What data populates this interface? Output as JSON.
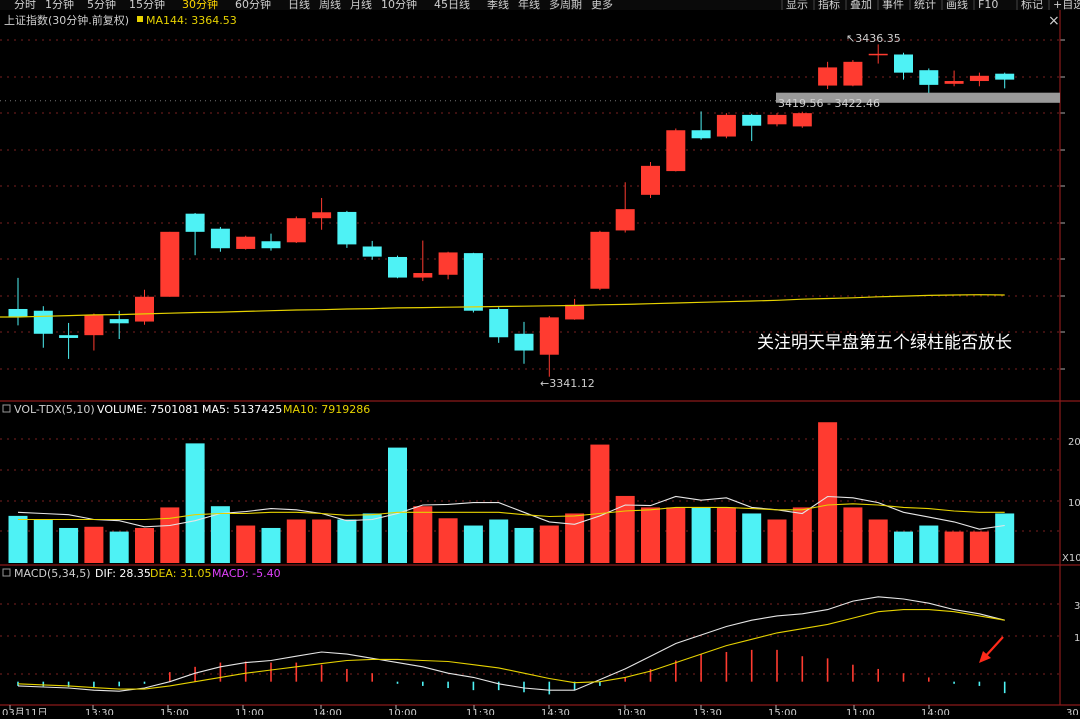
{
  "topbar": {
    "periods": [
      "分时",
      "1分钟",
      "5分钟",
      "15分钟",
      "30分钟",
      "60分钟",
      "日线",
      "周线",
      "月线",
      "10分钟",
      "45日线",
      "季线",
      "年线",
      "多周期",
      "更多"
    ],
    "active_period": "30分钟",
    "tools": [
      "显示",
      "指标",
      "叠加",
      "事件",
      "统计",
      "画线",
      "F10",
      "标记",
      "+自选"
    ],
    "close_glyph": "×"
  },
  "colors": {
    "up": "#ff3b30",
    "down": "#4ef2f5",
    "ma": "#e6d200",
    "white_line": "#e6e6e6",
    "dea": "#e6d200",
    "macd_label": "#e040fb",
    "grid": "#7a1f1f",
    "divider": "#8b1a1a"
  },
  "main_panel": {
    "title": "上证指数(30分钟.前复权)",
    "ma_label": "MA144: 3364.53",
    "high_label": "3436.35",
    "low_label": "3341.12",
    "range_label": "3419.56 - 3422.46",
    "annotation": "关注明天早盘第五个绿柱能否放长"
  },
  "volume_panel": {
    "name": "VOL-TDX(5,10)",
    "volume": "VOLUME: 7501081",
    "ma5": "MA5: 5137425",
    "ma10": "MA10: 7919286",
    "y_labels": [
      "20",
      "10",
      "X10"
    ]
  },
  "macd_panel": {
    "name": "MACD(5,34,5)",
    "dif": "DIF: 28.35",
    "dea": "DEA: 31.05",
    "macd": "MACD: -5.40",
    "y_labels": [
      "3",
      "1"
    ]
  },
  "x_axis": {
    "labels": [
      "03月11日",
      "13:30",
      "15:00",
      "11:00",
      "14:00",
      "10:00",
      "11:30",
      "14:30",
      "10:30",
      "13:30",
      "15:00",
      "11:00",
      "14:00"
    ],
    "corner": "30"
  },
  "chart_data": {
    "type": "candlestick",
    "title": "上证指数(30分钟.前复权)",
    "price_range": [
      3335,
      3445
    ],
    "candles": [
      {
        "o": 3360.5,
        "c": 3358.2,
        "h": 3369.4,
        "l": 3355.8
      },
      {
        "o": 3360.0,
        "c": 3353.4,
        "h": 3361.3,
        "l": 3349.4
      },
      {
        "o": 3353.0,
        "c": 3352.2,
        "h": 3356.5,
        "l": 3346.2
      },
      {
        "o": 3353.0,
        "c": 3358.7,
        "h": 3359.2,
        "l": 3348.6
      },
      {
        "o": 3357.6,
        "c": 3356.4,
        "h": 3360.0,
        "l": 3351.9
      },
      {
        "o": 3356.9,
        "c": 3364.0,
        "h": 3366.0,
        "l": 3356.0
      },
      {
        "o": 3364.0,
        "c": 3382.6,
        "h": 3382.6,
        "l": 3364.0
      },
      {
        "o": 3387.8,
        "c": 3382.6,
        "h": 3388.0,
        "l": 3375.9
      },
      {
        "o": 3383.5,
        "c": 3377.9,
        "h": 3384.0,
        "l": 3376.9
      },
      {
        "o": 3377.7,
        "c": 3381.2,
        "h": 3381.5,
        "l": 3377.5
      },
      {
        "o": 3379.9,
        "c": 3377.9,
        "h": 3382.1,
        "l": 3377.2
      },
      {
        "o": 3379.6,
        "c": 3386.5,
        "h": 3387.0,
        "l": 3379.4
      },
      {
        "o": 3386.5,
        "c": 3388.2,
        "h": 3392.3,
        "l": 3383.2
      },
      {
        "o": 3388.3,
        "c": 3379.0,
        "h": 3388.6,
        "l": 3378.0
      },
      {
        "o": 3378.4,
        "c": 3375.5,
        "h": 3380.0,
        "l": 3374.6
      },
      {
        "o": 3375.4,
        "c": 3369.5,
        "h": 3375.8,
        "l": 3369.3
      },
      {
        "o": 3369.5,
        "c": 3370.8,
        "h": 3380.1,
        "l": 3368.5
      },
      {
        "o": 3370.3,
        "c": 3376.7,
        "h": 3376.9,
        "l": 3369.0
      },
      {
        "o": 3376.5,
        "c": 3360.0,
        "h": 3376.6,
        "l": 3359.5
      },
      {
        "o": 3360.5,
        "c": 3352.4,
        "h": 3361.0,
        "l": 3350.8
      },
      {
        "o": 3353.4,
        "c": 3348.6,
        "h": 3356.8,
        "l": 3344.8
      },
      {
        "o": 3347.4,
        "c": 3358.1,
        "h": 3358.5,
        "l": 3341.1
      },
      {
        "o": 3357.5,
        "c": 3361.7,
        "h": 3363.4,
        "l": 3357.4
      },
      {
        "o": 3366.3,
        "c": 3382.6,
        "h": 3382.9,
        "l": 3365.9
      },
      {
        "o": 3383.0,
        "c": 3389.1,
        "h": 3396.8,
        "l": 3382.4
      },
      {
        "o": 3393.2,
        "c": 3401.5,
        "h": 3402.6,
        "l": 3392.3
      },
      {
        "o": 3400.0,
        "c": 3411.7,
        "h": 3412.2,
        "l": 3399.9
      },
      {
        "o": 3411.7,
        "c": 3409.4,
        "h": 3417.1,
        "l": 3409.0
      },
      {
        "o": 3409.9,
        "c": 3416.1,
        "h": 3416.6,
        "l": 3409.4
      },
      {
        "o": 3416.1,
        "c": 3413.0,
        "h": 3416.4,
        "l": 3408.6
      },
      {
        "o": 3413.4,
        "c": 3416.1,
        "h": 3416.6,
        "l": 3412.8
      },
      {
        "o": 3412.8,
        "c": 3416.6,
        "h": 3417.0,
        "l": 3412.4
      },
      {
        "o": 3424.5,
        "c": 3429.7,
        "h": 3431.3,
        "l": 3423.5
      },
      {
        "o": 3424.5,
        "c": 3431.3,
        "h": 3431.8,
        "l": 3424.3
      },
      {
        "o": 3433.3,
        "c": 3433.6,
        "h": 3436.3,
        "l": 3430.8
      },
      {
        "o": 3433.4,
        "c": 3428.2,
        "h": 3433.9,
        "l": 3426.2
      },
      {
        "o": 3428.9,
        "c": 3424.7,
        "h": 3429.4,
        "l": 3422.4
      },
      {
        "o": 3425.0,
        "c": 3425.8,
        "h": 3428.8,
        "l": 3424.3
      },
      {
        "o": 3425.8,
        "c": 3427.3,
        "h": 3428.2,
        "l": 3424.3
      },
      {
        "o": 3427.9,
        "c": 3426.2,
        "h": 3428.2,
        "l": 3423.7
      }
    ],
    "ma144": [
      3358.2,
      3358.4,
      3358.6,
      3358.8,
      3358.9,
      3359.1,
      3359.3,
      3359.5,
      3359.6,
      3359.8,
      3360.0,
      3360.2,
      3360.3,
      3360.5,
      3360.6,
      3360.8,
      3360.9,
      3361.0,
      3361.1,
      3361.2,
      3361.3,
      3361.4,
      3361.5,
      3361.7,
      3361.8,
      3362.0,
      3362.2,
      3362.4,
      3362.6,
      3362.8,
      3363.0,
      3363.3,
      3363.5,
      3363.7,
      3364.0,
      3364.2,
      3364.4,
      3364.5,
      3364.6,
      3364.5
    ],
    "volume": [
      78,
      72,
      58,
      60,
      52,
      58,
      92,
      198,
      94,
      62,
      58,
      72,
      72,
      72,
      82,
      191,
      94,
      74,
      62,
      72,
      58,
      62,
      82,
      196,
      111,
      92,
      92,
      92,
      92,
      82,
      72,
      92,
      233,
      92,
      72,
      52,
      62,
      52,
      52,
      82
    ],
    "vol_ma5": [
      84,
      82,
      80,
      72,
      70,
      60,
      62,
      70,
      82,
      85,
      90,
      88,
      82,
      70,
      72,
      82,
      96,
      97,
      100,
      100,
      84,
      68,
      64,
      78,
      96,
      95,
      110,
      104,
      108,
      92,
      88,
      82,
      110,
      108,
      100,
      84,
      76,
      68,
      56,
      62
    ],
    "vol_ma10": [
      72,
      72,
      72,
      72,
      72,
      72,
      74,
      80,
      82,
      82,
      84,
      84,
      82,
      79,
      80,
      84,
      84,
      84,
      84,
      84,
      80,
      77,
      78,
      82,
      86,
      88,
      92,
      92,
      92,
      90,
      88,
      88,
      96,
      98,
      96,
      92,
      90,
      86,
      84,
      84
    ],
    "dif": [
      -2,
      -2.5,
      -3,
      -4,
      -4.5,
      -3,
      0,
      4,
      7,
      9,
      10,
      12,
      14,
      13,
      11,
      9,
      7,
      4,
      2,
      -1,
      -3,
      -4,
      -4,
      1,
      6,
      12,
      18,
      22,
      26,
      29,
      31,
      32,
      34,
      38,
      40,
      39,
      37,
      34,
      32,
      29
    ],
    "dea": [
      -1,
      -1.5,
      -2,
      -2.8,
      -3.5,
      -3.5,
      -2,
      0,
      2,
      4,
      5.5,
      7,
      8.5,
      10,
      10.5,
      10.5,
      10,
      9.5,
      8,
      6.5,
      4,
      1.5,
      -0.5,
      0,
      2,
      5,
      9,
      13,
      17,
      20,
      23,
      25,
      27,
      30,
      33,
      34,
      34,
      33,
      31,
      29
    ],
    "macd_hist": [
      -2,
      -2.2,
      -2.5,
      -3,
      -2.2,
      -1,
      4.5,
      7,
      9,
      9.5,
      9,
      9,
      8,
      6,
      4,
      -1,
      -2,
      -3,
      -4,
      -4,
      -5,
      -6,
      -4,
      -2,
      2,
      6,
      10,
      13,
      14,
      15,
      15,
      12,
      11,
      8,
      6,
      4,
      2,
      -1,
      -2,
      -5.4
    ]
  }
}
